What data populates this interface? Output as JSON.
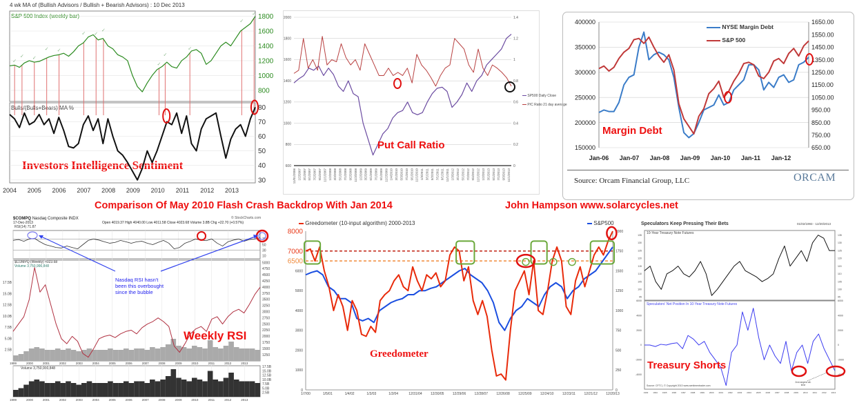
{
  "headline": {
    "title": "Comparison Of May 2010 Flash Crash Backdrop With Jan 2014",
    "author": "John Hampson  www.solarcycles.net"
  },
  "colors": {
    "headline": "#ee1111",
    "green": "#2a8a1e",
    "purple": "#6a4aa0",
    "pc_red": "#b84040",
    "md_blue": "#3a7cc8",
    "md_red": "#c03838",
    "greed_red": "#e82a0a",
    "greed_blue": "#1a4ee0",
    "box_green": "#6aa83a"
  },
  "chart_data": [
    {
      "id": "investors-intelligence",
      "type": "line",
      "title": "4 wk MA of (Bullish Advisors / Bullish + Bearish Advisors) : 10 Dec 2013",
      "overlay_label": "Investors Intelligence Sentiment",
      "x_range": [
        2004,
        2013.95
      ],
      "x_tick_labels": [
        "2004",
        "2005",
        "2006",
        "2007",
        "2008",
        "2009",
        "2010",
        "2011",
        "2012",
        "2013"
      ],
      "upper": {
        "label": "S&P 500 Index (weekly bar)",
        "ylim": [
          650,
          1870
        ],
        "y_ticks": [
          800,
          1000,
          1200,
          1400,
          1600,
          1800
        ],
        "values": [
          1130,
          1140,
          1110,
          1170,
          1200,
          1180,
          1190,
          1220,
          1250,
          1270,
          1280,
          1300,
          1260,
          1320,
          1400,
          1440,
          1520,
          1550,
          1480,
          1500,
          1400,
          1360,
          1280,
          1250,
          1200,
          1000,
          850,
          780,
          900,
          1000,
          1080,
          1120,
          1180,
          1120,
          1100,
          1200,
          1250,
          1330,
          1350,
          1300,
          1150,
          1200,
          1300,
          1400,
          1450,
          1400,
          1500,
          1600,
          1650,
          1700,
          1800
        ]
      },
      "lower": {
        "label": "Bulls/(Bulls+Bears) MA %",
        "ylim": [
          28,
          83
        ],
        "y_ticks": [
          30,
          40,
          50,
          60,
          70,
          80
        ],
        "values": [
          75,
          72,
          66,
          76,
          68,
          70,
          75,
          68,
          72,
          62,
          73,
          64,
          53,
          52,
          55,
          68,
          74,
          64,
          72,
          55,
          72,
          60,
          50,
          47,
          42,
          36,
          30,
          38,
          50,
          42,
          50,
          60,
          70,
          68,
          76,
          62,
          74,
          55,
          50,
          65,
          72,
          74,
          76,
          60,
          45,
          58,
          65,
          68,
          60,
          72,
          80
        ]
      },
      "signals": [
        2004.2,
        2004.5,
        2005.0,
        2005.5,
        2006.0,
        2007.0,
        2007.5,
        2007.8,
        2010.05,
        2010.3,
        2011.3,
        2013.4,
        2013.9
      ],
      "x_signal": [
        2006.0
      ],
      "circled": [
        [
          2010.35,
          74
        ],
        [
          2013.92,
          80
        ]
      ]
    },
    {
      "id": "put-call-ratio",
      "type": "line",
      "overlay_label": "Put Call Ratio",
      "left_ylim": [
        600,
        2000
      ],
      "left_ticks": [
        600,
        800,
        1000,
        1200,
        1400,
        1600,
        1800,
        2000
      ],
      "right_ylim": [
        0,
        1.4
      ],
      "right_ticks": [
        0,
        0.2,
        0.4,
        0.6,
        0.8,
        1,
        1.2,
        1.4
      ],
      "x_tick_labels": [
        "11/01/2006",
        "1/2/2007",
        "3/1/2007",
        "5/1/2007",
        "7/2/2007",
        "9/4/2007",
        "11/1/2007",
        "1/2/2008",
        "3/3/2008",
        "5/1/2008",
        "7/1/2008",
        "9/2/2008",
        "11/3/2008",
        "1/2/2009",
        "3/2/2009",
        "5/1/2009",
        "7/1/2009",
        "9/1/2009",
        "11/2/2009",
        "1/4/2010",
        "3/1/2010",
        "5/3/2010",
        "7/1/2010",
        "9/1/2010",
        "11/1/2010",
        "1/3/2011",
        "3/1/2011",
        "5/2/2011",
        "7/1/2011",
        "9/1/2011",
        "11/1/2011",
        "1/3/2012",
        "3/1/2012",
        "5/1/2012",
        "7/2/2012",
        "9/4/2012",
        "11/1/2012",
        "1/2/2013",
        "3/1/2013",
        "5/1/2013",
        "7/1/2013",
        "9/3/2013",
        "11/1/2013"
      ],
      "series": [
        {
          "name": "SP500 Daily Close",
          "axis": "left",
          "values": [
            1380,
            1420,
            1450,
            1520,
            1500,
            1540,
            1450,
            1520,
            1460,
            1350,
            1300,
            1400,
            1280,
            1250,
            1000,
            850,
            700,
            800,
            900,
            950,
            1050,
            1100,
            1120,
            1200,
            1100,
            1080,
            1100,
            1200,
            1280,
            1330,
            1340,
            1300,
            1150,
            1200,
            1270,
            1380,
            1300,
            1400,
            1450,
            1550,
            1600,
            1650,
            1700,
            1800,
            1840
          ]
        },
        {
          "name": "P/C Ratio 21 day average",
          "axis": "right",
          "values": [
            0.87,
            0.9,
            1.2,
            0.92,
            1.0,
            0.9,
            1.22,
            0.95,
            1.0,
            0.98,
            1.15,
            1.02,
            0.95,
            1.0,
            0.9,
            1.15,
            1.05,
            0.95,
            0.85,
            0.85,
            0.92,
            0.85,
            0.88,
            0.85,
            0.92,
            0.78,
            1.05,
            0.95,
            0.9,
            0.83,
            0.75,
            0.85,
            0.92,
            0.95,
            1.2,
            1.15,
            1.1,
            0.95,
            0.88,
            1.1,
            0.92,
            0.85,
            0.95,
            0.92,
            0.88,
            0.83,
            0.75
          ]
        }
      ]
    },
    {
      "id": "margin-debt",
      "type": "line",
      "overlay_label": "Margin Debt",
      "source": "Source: Orcam Financial Group, LLC",
      "logo": "ORCAM",
      "left_ylim": [
        150000,
        400000
      ],
      "left_ticks": [
        "150000",
        "200000",
        "250000",
        "300000",
        "350000",
        "400000"
      ],
      "right_ylim": [
        650,
        1650
      ],
      "right_ticks": [
        "650.00",
        "750.00",
        "850.00",
        "950.00",
        "1050.00",
        "1150.00",
        "1250.00",
        "1350.00",
        "1450.00",
        "1550.00",
        "1650.00"
      ],
      "x_tick_labels": [
        "Jan-06",
        "Jan-07",
        "Jan-08",
        "Jan-09",
        "Jan-10",
        "Jan-11",
        "Jan-12"
      ],
      "series": [
        {
          "name": "NYSE Margin Debt",
          "axis": "left",
          "values": [
            220000,
            225000,
            222000,
            222000,
            240000,
            275000,
            290000,
            295000,
            350000,
            380000,
            325000,
            335000,
            340000,
            335000,
            325000,
            290000,
            230000,
            180000,
            170000,
            178000,
            200000,
            225000,
            230000,
            235000,
            255000,
            235000,
            240000,
            265000,
            275000,
            285000,
            315000,
            315000,
            305000,
            265000,
            280000,
            270000,
            290000,
            295000,
            280000,
            285000,
            315000,
            320000,
            330000
          ]
        },
        {
          "name": "S&P 500",
          "axis": "right",
          "values": [
            1280,
            1300,
            1260,
            1290,
            1360,
            1410,
            1440,
            1510,
            1520,
            1480,
            1530,
            1450,
            1380,
            1330,
            1390,
            1270,
            1000,
            880,
            820,
            760,
            900,
            960,
            1080,
            1120,
            1180,
            1050,
            1100,
            1180,
            1240,
            1320,
            1330,
            1310,
            1220,
            1200,
            1250,
            1340,
            1360,
            1320,
            1400,
            1440,
            1380,
            1460,
            1500
          ]
        }
      ]
    },
    {
      "id": "nasdaq-weekly-rsi",
      "type": "line",
      "overlay_label": "Weekly RSI",
      "symbol": "$COMPQ",
      "name": "Nasdaq Composite",
      "exchange": "INDX",
      "date": "17-Dec-2013",
      "quote": "Open 4019.37  High 4040.00  Low 4011.58  Close 4023.68  Volume 3.8B  Chg +22.70 (+0.57%)",
      "brand": "© StockCharts.com",
      "rsi_label": "RSI(14) 71.87",
      "price_label": "$COMPQ (Weekly) 4023.68",
      "volume_label": "Volume 3,750,990,848",
      "annotation": "Nasdaq RSI hasn't been this overbought since the bubble",
      "x_range": [
        1999,
        2013.95
      ],
      "x_tick_labels": [
        "1999",
        "2000",
        "2001",
        "2002",
        "2003",
        "2004",
        "2005",
        "2006",
        "2007",
        "2008",
        "2009",
        "2010",
        "2011",
        "2012",
        "2013"
      ],
      "rsi_ticks": [
        "70",
        "50",
        "30",
        "10"
      ],
      "price_ticks": [
        "5000",
        "4750",
        "4500",
        "4250",
        "4000",
        "3750",
        "3500",
        "3250",
        "3000",
        "2750",
        "2500",
        "2250",
        "2000",
        "1750",
        "1500",
        "1250"
      ],
      "volume_ticks": [
        "17.5B",
        "15.0B",
        "12.5B",
        "10.0B",
        "7.5B",
        "5.0B",
        "2.5B"
      ],
      "rsi": [
        65,
        68,
        62,
        70,
        72,
        60,
        50,
        45,
        40,
        38,
        45,
        40,
        35,
        50,
        65,
        70,
        66,
        60,
        55,
        58,
        65,
        60,
        55,
        60,
        62,
        55,
        50,
        58,
        65,
        55,
        35,
        40,
        55,
        62,
        70,
        66,
        64,
        70,
        55,
        45,
        60,
        66,
        70,
        62,
        68,
        70,
        74
      ],
      "price": [
        2200,
        2500,
        2800,
        3500,
        4800,
        3800,
        4100,
        3300,
        2500,
        1900,
        1700,
        2000,
        1800,
        1300,
        1150,
        1500,
        1900,
        2000,
        2050,
        1950,
        2100,
        2200,
        2250,
        2100,
        2350,
        2500,
        2600,
        2750,
        2600,
        2400,
        1600,
        1350,
        1700,
        2100,
        2300,
        2400,
        2200,
        2700,
        2800,
        2500,
        2800,
        3000,
        3100,
        2950,
        3300,
        3700,
        4000
      ],
      "volume": [
        4,
        5,
        7,
        9,
        10,
        9,
        8,
        8,
        9,
        8,
        9,
        8,
        7,
        8,
        9,
        8,
        8,
        8,
        9,
        8,
        8,
        9,
        8,
        9,
        9,
        8,
        10,
        9,
        10,
        12,
        16,
        11,
        10,
        9,
        11,
        10,
        9,
        15,
        10,
        9,
        11,
        14,
        10,
        9,
        9,
        9,
        8
      ]
    },
    {
      "id": "greedometer",
      "type": "line",
      "overlay_label": "Greedometer",
      "left_ylim": [
        0,
        8000
      ],
      "left_ticks": [
        "0",
        "1000",
        "2000",
        "3000",
        "4000",
        "5000",
        "6000"
      ],
      "left_highlight_ticks": [
        {
          "value": 8000,
          "label": "8000",
          "color": "#e83a1a"
        },
        {
          "value": 7000,
          "label": "7000",
          "color": "#e83a1a"
        },
        {
          "value": 6500,
          "label": "6500",
          "color": "#f08a3a"
        }
      ],
      "right_ylim": [
        0,
        2000
      ],
      "right_ticks": [
        "0",
        "250",
        "500",
        "750",
        "1000",
        "1250",
        "1500",
        "1750",
        "2000"
      ],
      "x_tick_labels": [
        "1/7/00",
        "1/5/01",
        "1/4/02",
        "1/3/03",
        "1/2/04",
        "12/31/04",
        "12/30/05",
        "12/29/06",
        "12/28/07",
        "12/26/08",
        "12/25/09",
        "12/24/10",
        "12/23/11",
        "12/21/12",
        "12/20/13"
      ],
      "thresholds": [
        7000,
        6500
      ],
      "series": [
        {
          "name": "Greedometer (10-input algorithm) 2000-2013",
          "axis": "left",
          "values": [
            7000,
            7100,
            6500,
            7200,
            6000,
            5200,
            4000,
            4800,
            4200,
            3000,
            4500,
            4000,
            2800,
            2700,
            3200,
            2900,
            4500,
            4800,
            5000,
            5500,
            5800,
            5200,
            5000,
            6200,
            5500,
            5000,
            5800,
            5600,
            5900,
            5200,
            5500,
            6800,
            7200,
            7000,
            5500,
            6200,
            4500,
            3800,
            4500,
            3700,
            2000,
            700,
            800,
            500,
            3000,
            5000,
            5500,
            6000,
            4800,
            6500,
            4000,
            3800,
            5000,
            6500,
            7200,
            6500,
            4200,
            3800,
            5500,
            6200,
            5200,
            6000,
            6800,
            7200,
            6800,
            7500,
            8000
          ]
        },
        {
          "name": "S&P500",
          "axis": "right",
          "values": [
            1450,
            1480,
            1500,
            1450,
            1300,
            1250,
            1150,
            1150,
            1100,
            900,
            870,
            900,
            850,
            1000,
            1050,
            1100,
            1130,
            1150,
            1200,
            1200,
            1250,
            1250,
            1280,
            1300,
            1350,
            1400,
            1450,
            1500,
            1530,
            1450,
            1400,
            1350,
            1250,
            1100,
            850,
            750,
            900,
            1000,
            1050,
            1150,
            1100,
            1050,
            1200,
            1300,
            1350,
            1300,
            1150,
            1250,
            1300,
            1400,
            1450,
            1500,
            1600,
            1700,
            1800
          ]
        }
      ],
      "green_boxes": [
        [
          2000.0,
          2000.6
        ],
        [
          2006.9,
          2007.6
        ],
        [
          2010.3,
          2010.9
        ],
        [
          2013.0,
          2013.95
        ]
      ],
      "green_circles": [
        2010.0,
        2011.25,
        2012.1
      ],
      "red_circles": [
        [
          2010.0,
          6500
        ],
        [
          2013.9,
          7900
        ]
      ]
    },
    {
      "id": "treasury-shorts",
      "type": "line",
      "overlay_label": "Treasury Shorts",
      "title": "Speculators Keep Pressing Their Bets",
      "date_range": "01/02/1993 - 12/20/2013",
      "upper_label": "10-Year Treasury Note Futures",
      "lower_label": "Speculators' Net Position In 10-Year Treasury Note Futures",
      "source": "Source: CFTC  |  © Copyright 2013  www.sentimentrader.com",
      "note": "2nd-largest all-time",
      "x_range": [
        1993,
        2013.95
      ],
      "upper_ylim": [
        93,
        138
      ],
      "upper_ticks": [
        "95",
        "100",
        "105",
        "110",
        "115",
        "120",
        "125",
        "130",
        "135"
      ],
      "lower_ylim": [
        -6000,
        6000
      ],
      "lower_ticks": [
        "6000",
        "4000",
        "2000",
        "0",
        "-2000",
        "-4000"
      ],
      "x_tick_labels": [
        "1993",
        "1994",
        "1995",
        "1996",
        "1997",
        "1998",
        "1999",
        "2000",
        "2001",
        "2002",
        "2003",
        "2004",
        "2005",
        "2006",
        "2007",
        "2008",
        "2009",
        "2010",
        "2011",
        "2012",
        "2013"
      ],
      "futures": [
        112,
        115,
        105,
        100,
        110,
        112,
        115,
        110,
        108,
        112,
        118,
        110,
        96,
        100,
        105,
        110,
        115,
        118,
        112,
        110,
        108,
        105,
        107,
        110,
        120,
        128,
        115,
        120,
        125,
        118,
        130,
        135,
        133,
        125,
        125
      ],
      "net_position": [
        0,
        0,
        -200,
        100,
        0,
        200,
        300,
        -500,
        1300,
        800,
        0,
        500,
        -1000,
        -2000,
        -3000,
        -5500,
        -1000,
        0,
        4500,
        2000,
        5000,
        1000,
        -2000,
        0,
        -1500,
        -2500,
        500,
        -3500,
        -1000,
        0,
        -2500,
        500,
        1500,
        -500,
        -2000,
        -3500
      ],
      "circled": [
        2010.0,
        2013.8
      ]
    }
  ]
}
